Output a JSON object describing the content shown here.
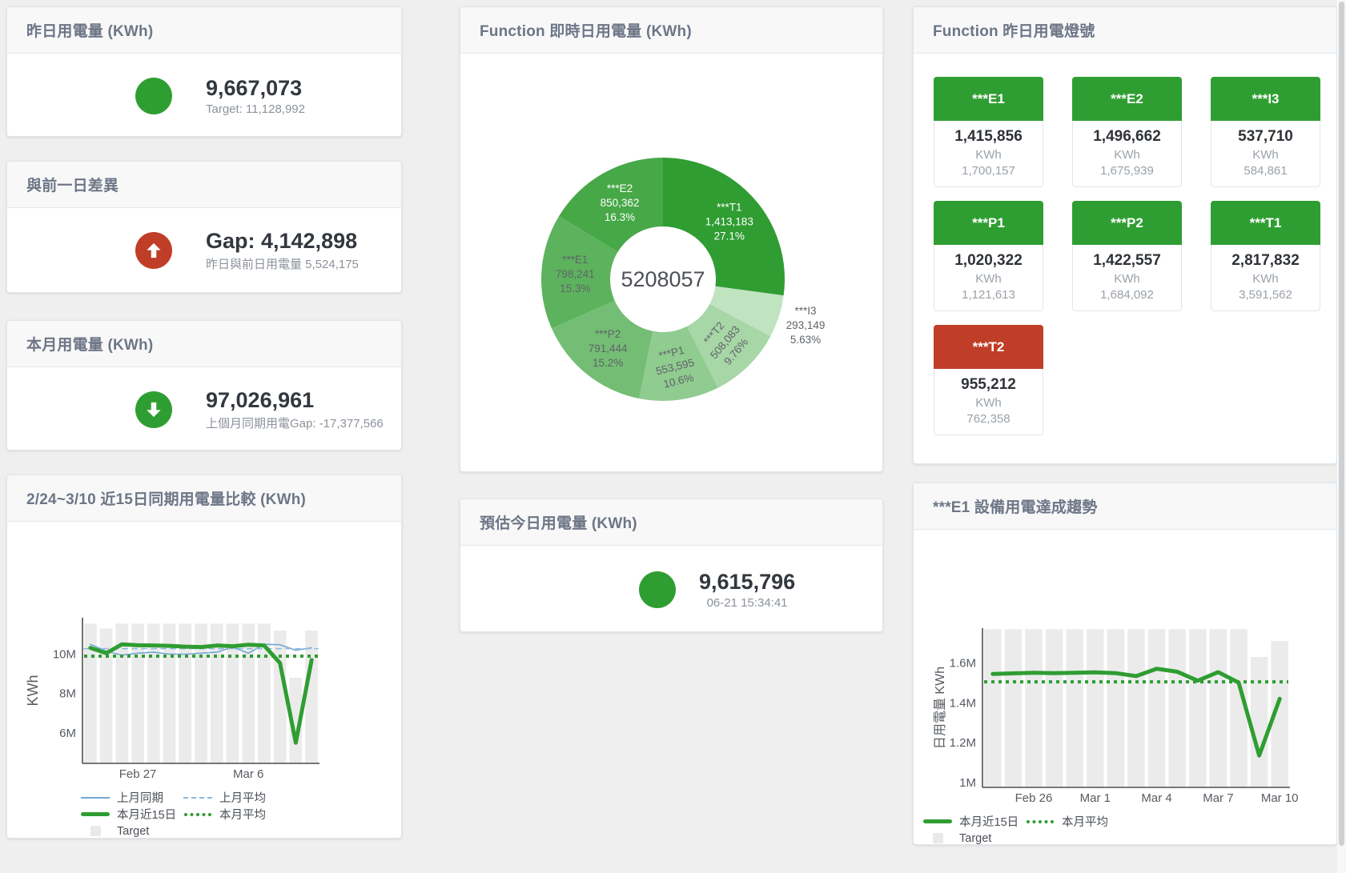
{
  "colors": {
    "green": "#2f9e32",
    "red": "#c03d27",
    "blue": "#72a7d3",
    "blue_light": "#8cb8de",
    "target_bar": "#ebebeb",
    "axis": "#4d4d4d",
    "tick_text": "#565b61"
  },
  "cards": {
    "yesterday": {
      "title": "昨日用電量 (KWh)",
      "value": "9,667,073",
      "sub": "Target: 11,128,992"
    },
    "gap": {
      "title": "與前一日差異",
      "value": "Gap: 4,142,898",
      "sub": "昨日與前日用電量 5,524,175"
    },
    "month": {
      "title": "本月用電量 (KWh)",
      "value": "97,026,961",
      "sub": "上個月同期用電Gap: -17,377,566"
    },
    "estimate": {
      "title": "預估今日用電量 (KWh)",
      "value": "9,615,796",
      "sub": "06-21 15:34:41"
    }
  },
  "donut_panel": {
    "title": "Function 即時日用電量 (KWh)"
  },
  "lights_panel": {
    "title": "Function 昨日用電燈號",
    "tiles": [
      {
        "label": "***E1",
        "value": "1,415,856",
        "unit": "KWh",
        "target": "1,700,157",
        "status": "green"
      },
      {
        "label": "***E2",
        "value": "1,496,662",
        "unit": "KWh",
        "target": "1,675,939",
        "status": "green"
      },
      {
        "label": "***I3",
        "value": "537,710",
        "unit": "KWh",
        "target": "584,861",
        "status": "green"
      },
      {
        "label": "***P1",
        "value": "1,020,322",
        "unit": "KWh",
        "target": "1,121,613",
        "status": "green"
      },
      {
        "label": "***P2",
        "value": "1,422,557",
        "unit": "KWh",
        "target": "1,684,092",
        "status": "green"
      },
      {
        "label": "***T1",
        "value": "2,817,832",
        "unit": "KWh",
        "target": "3,591,562",
        "status": "green"
      },
      {
        "label": "***T2",
        "value": "955,212",
        "unit": "KWh",
        "target": "762,358",
        "status": "red"
      }
    ]
  },
  "compare_panel": {
    "title": "2/24~3/10 近15日同期用電量比較 (KWh)"
  },
  "trend_panel": {
    "title": "***E1 設備用電達成趨勢"
  },
  "chart_data": [
    {
      "type": "pie",
      "title": "Function 即時日用電量 (KWh)",
      "center_total": "5208057",
      "unit": "KWh",
      "slices": [
        {
          "name": "***T1",
          "value": 1413183,
          "value_display": "1,413,183",
          "pct": "27.1%",
          "pct_num": 27.1,
          "color": "#2f9d32",
          "label_color": "#ffffff"
        },
        {
          "name": "***I3",
          "value": 293149,
          "value_display": "293,149",
          "pct": "5.63%",
          "pct_num": 5.63,
          "color": "#c0e3c0",
          "label_color": "#5f6468",
          "label_r": 187
        },
        {
          "name": "***T2",
          "value": 508083,
          "value_display": "508,083",
          "pct": "9.76%",
          "pct_num": 9.76,
          "color": "#a7d6a7",
          "label_color": "#5f6468",
          "rotate": -50
        },
        {
          "name": "***P1",
          "value": 553595,
          "value_display": "553,595",
          "pct": "10.6%",
          "pct_num": 10.6,
          "color": "#90cb90",
          "label_color": "#5f6468",
          "rotate": -14
        },
        {
          "name": "***P2",
          "value": 791444,
          "value_display": "791,444",
          "pct": "15.2%",
          "pct_num": 15.2,
          "color": "#74bd74",
          "label_color": "#5f6468"
        },
        {
          "name": "***E1",
          "value": 798241,
          "value_display": "798,241",
          "pct": "15.3%",
          "pct_num": 15.3,
          "color": "#5db25d",
          "label_color": "#5f6468"
        },
        {
          "name": "***E2",
          "value": 850362,
          "value_display": "850,362",
          "pct": "16.3%",
          "pct_num": 16.3,
          "color": "#47a847",
          "label_color": "#ffffff"
        }
      ]
    },
    {
      "type": "line",
      "title": "2/24~3/10 近15日同期用電量比較 (KWh)",
      "ylabel": "KWh",
      "unit": "M KWh",
      "ylim": [
        4.45,
        11.85
      ],
      "yticks": [
        {
          "v": 6,
          "label": "6M"
        },
        {
          "v": 8,
          "label": "8M"
        },
        {
          "v": 10,
          "label": "10M"
        }
      ],
      "x_count": 15,
      "x_range": "Feb 24 - Mar 10",
      "xticks": [
        {
          "i": 3,
          "label": "Feb 27"
        },
        {
          "i": 10,
          "label": "Mar 6"
        }
      ],
      "target_bars": {
        "name": "Target",
        "color": "#ebebeb",
        "values": [
          11.55,
          11.3,
          11.55,
          11.55,
          11.55,
          11.55,
          11.55,
          11.55,
          11.55,
          11.55,
          11.55,
          11.55,
          11.2,
          8.8,
          11.2
        ]
      },
      "series": [
        {
          "name": "上月同期",
          "style": "solid",
          "width": 1.6,
          "color": "#72a7d3",
          "values": [
            10.5,
            10.15,
            9.95,
            10.05,
            10.1,
            10.0,
            10.0,
            10.05,
            10.1,
            10.35,
            10.05,
            10.5,
            10.48,
            10.2,
            10.32
          ]
        },
        {
          "name": "上月平均",
          "style": "dashed",
          "width": 1.6,
          "color": "#8cb8de",
          "constant": true,
          "values": [
            10.28,
            10.28,
            10.28,
            10.28,
            10.28,
            10.28,
            10.28,
            10.28,
            10.28,
            10.28,
            10.28,
            10.28,
            10.28,
            10.28,
            10.28
          ]
        },
        {
          "name": "本月平均",
          "style": "dotted",
          "width": 4,
          "color": "#2f9d32",
          "constant": true,
          "values": [
            9.9,
            9.9,
            9.9,
            9.9,
            9.9,
            9.9,
            9.9,
            9.9,
            9.9,
            9.9,
            9.9,
            9.9,
            9.9,
            9.9,
            9.9
          ]
        },
        {
          "name": "本月近15日",
          "style": "solid",
          "width": 5,
          "color": "#2f9d32",
          "values": [
            10.32,
            10.05,
            10.5,
            10.45,
            10.44,
            10.42,
            10.38,
            10.36,
            10.44,
            10.4,
            10.48,
            10.44,
            9.55,
            5.5,
            9.7
          ]
        }
      ],
      "legend_rows": [
        [
          {
            "label": "上月同期",
            "swatch": "solid",
            "color": "#72a7d3"
          },
          {
            "label": "上月平均",
            "swatch": "dashed",
            "color": "#8cb8de"
          }
        ],
        [
          {
            "label": "本月近15日",
            "swatch": "thick",
            "color": "#2f9d32"
          },
          {
            "label": "本月平均",
            "swatch": "dotted",
            "color": "#2f9d32"
          }
        ],
        [
          {
            "label": "Target",
            "swatch": "bar",
            "color": "#e9e9e9"
          }
        ]
      ]
    },
    {
      "type": "line",
      "title": "***E1 設備用電達成趨勢",
      "ylabel": "日用電量 KWh",
      "unit": "M KWh",
      "ylim": [
        0.975,
        1.775
      ],
      "yticks": [
        {
          "v": 1,
          "label": "1M"
        },
        {
          "v": 1.2,
          "label": "1.2M"
        },
        {
          "v": 1.4,
          "label": "1.4M"
        },
        {
          "v": 1.6,
          "label": "1.6M"
        }
      ],
      "x_count": 15,
      "x_range": "Feb 24 - Mar 10",
      "xticks": [
        {
          "i": 2,
          "label": "Feb 26"
        },
        {
          "i": 5,
          "label": "Mar 1"
        },
        {
          "i": 8,
          "label": "Mar 4"
        },
        {
          "i": 11,
          "label": "Mar 7"
        },
        {
          "i": 14,
          "label": "Mar 10"
        }
      ],
      "target_bars": {
        "name": "Target",
        "color": "#ebebeb",
        "values": [
          1.77,
          1.77,
          1.77,
          1.77,
          1.77,
          1.77,
          1.77,
          1.77,
          1.77,
          1.77,
          1.77,
          1.77,
          1.77,
          1.63,
          1.71
        ]
      },
      "series": [
        {
          "name": "本月平均",
          "style": "dotted",
          "width": 4,
          "color": "#2f9d32",
          "constant": true,
          "values": [
            1.505,
            1.505,
            1.505,
            1.505,
            1.505,
            1.505,
            1.505,
            1.505,
            1.505,
            1.505,
            1.505,
            1.505,
            1.505,
            1.505,
            1.505
          ]
        },
        {
          "name": "本月近15日",
          "style": "solid",
          "width": 5,
          "color": "#2f9d32",
          "values": [
            1.545,
            1.548,
            1.551,
            1.549,
            1.551,
            1.553,
            1.549,
            1.534,
            1.571,
            1.556,
            1.511,
            1.554,
            1.501,
            1.135,
            1.42
          ]
        }
      ],
      "legend_rows": [
        [
          {
            "label": "本月近15日",
            "swatch": "thick",
            "color": "#2f9d32"
          },
          {
            "label": "本月平均",
            "swatch": "dotted",
            "color": "#2f9d32"
          }
        ],
        [
          {
            "label": "Target",
            "swatch": "bar",
            "color": "#e9e9e9"
          }
        ]
      ]
    }
  ]
}
